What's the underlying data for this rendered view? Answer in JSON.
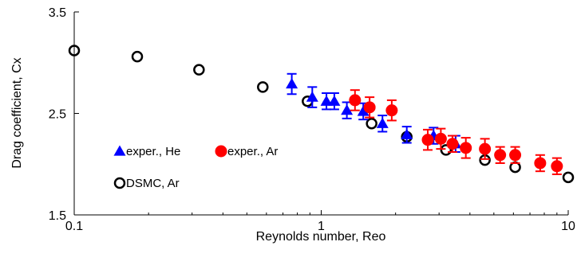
{
  "chart_data": {
    "type": "scatter",
    "title": "",
    "xlabel": "Reynolds number, Reo",
    "ylabel": "Drag coefficient, Cx",
    "xscale": "log",
    "xlim": [
      0.1,
      10
    ],
    "ylim": [
      1.5,
      3.5
    ],
    "xticks": [
      0.1,
      1,
      10
    ],
    "xtick_labels": [
      "0.1",
      "1",
      "10"
    ],
    "yticks": [
      1.5,
      2.5,
      3.5
    ],
    "ytick_labels": [
      "1.5",
      "2.5",
      "3.5"
    ],
    "grid": false,
    "legend_position": "inside, lower-left",
    "series": [
      {
        "name": "exper., He",
        "marker": "filled-triangle",
        "color": "#0000FF",
        "points": [
          {
            "x": 0.76,
            "y": 2.79,
            "err": 0.1
          },
          {
            "x": 0.92,
            "y": 2.66,
            "err": 0.1
          },
          {
            "x": 1.05,
            "y": 2.62,
            "err": 0.08
          },
          {
            "x": 1.13,
            "y": 2.62,
            "err": 0.08
          },
          {
            "x": 1.27,
            "y": 2.53,
            "err": 0.08
          },
          {
            "x": 1.48,
            "y": 2.52,
            "err": 0.08
          },
          {
            "x": 1.77,
            "y": 2.4,
            "err": 0.08
          },
          {
            "x": 2.22,
            "y": 2.29,
            "err": 0.08
          },
          {
            "x": 2.85,
            "y": 2.28,
            "err": 0.08
          },
          {
            "x": 3.5,
            "y": 2.2,
            "err": 0.08
          }
        ]
      },
      {
        "name": "exper., Ar",
        "marker": "filled-circle",
        "color": "#FF0000",
        "points": [
          {
            "x": 1.37,
            "y": 2.63,
            "err": 0.1
          },
          {
            "x": 1.57,
            "y": 2.56,
            "err": 0.1
          },
          {
            "x": 1.93,
            "y": 2.53,
            "err": 0.1
          },
          {
            "x": 2.7,
            "y": 2.24,
            "err": 0.1
          },
          {
            "x": 3.05,
            "y": 2.25,
            "err": 0.1
          },
          {
            "x": 3.4,
            "y": 2.2,
            "err": 0.08
          },
          {
            "x": 3.85,
            "y": 2.16,
            "err": 0.1
          },
          {
            "x": 4.6,
            "y": 2.15,
            "err": 0.1
          },
          {
            "x": 5.3,
            "y": 2.09,
            "err": 0.08
          },
          {
            "x": 6.1,
            "y": 2.09,
            "err": 0.08
          },
          {
            "x": 7.7,
            "y": 2.01,
            "err": 0.08
          },
          {
            "x": 9.0,
            "y": 1.98,
            "err": 0.08
          }
        ]
      },
      {
        "name": "DSMC, Ar",
        "marker": "open-circle",
        "color": "#000000",
        "points": [
          {
            "x": 0.1,
            "y": 3.12
          },
          {
            "x": 0.18,
            "y": 3.06
          },
          {
            "x": 0.32,
            "y": 2.93
          },
          {
            "x": 0.58,
            "y": 2.76
          },
          {
            "x": 0.88,
            "y": 2.62
          },
          {
            "x": 1.6,
            "y": 2.4
          },
          {
            "x": 2.22,
            "y": 2.27
          },
          {
            "x": 3.2,
            "y": 2.14
          },
          {
            "x": 4.6,
            "y": 2.04
          },
          {
            "x": 6.1,
            "y": 1.97
          },
          {
            "x": 10.0,
            "y": 1.87
          }
        ]
      }
    ]
  }
}
